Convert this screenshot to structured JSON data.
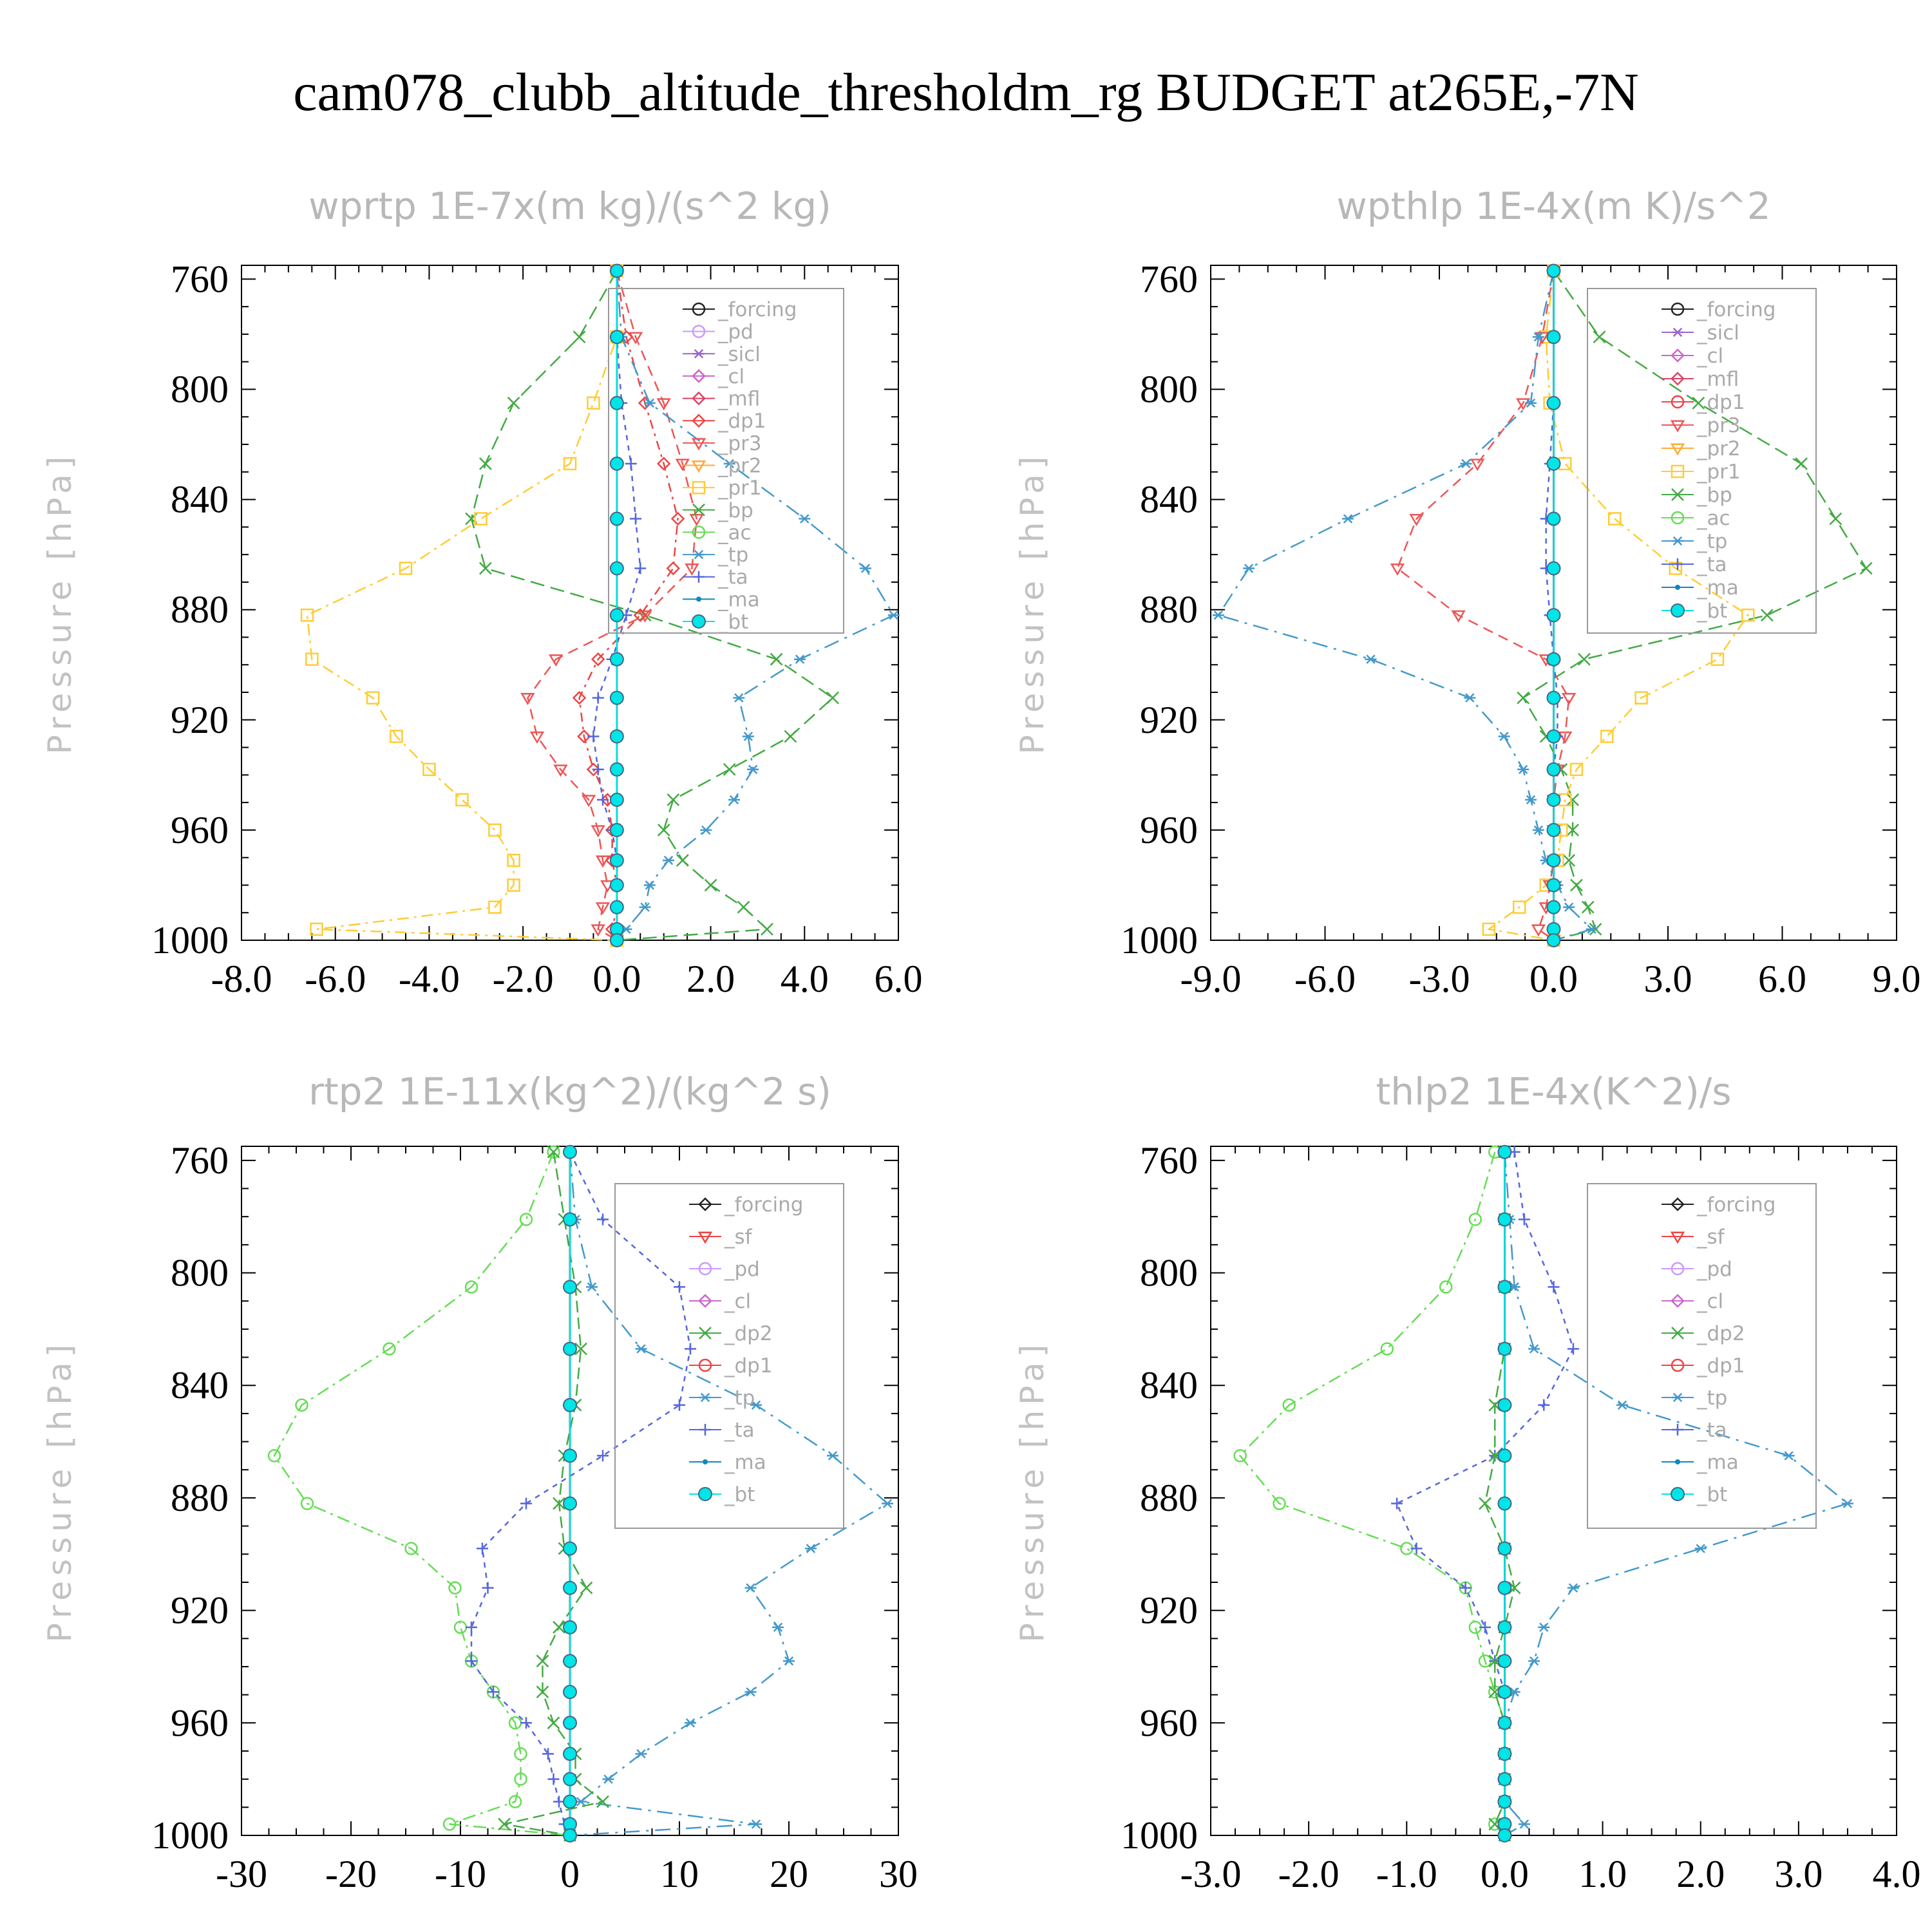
{
  "title": "cam078_clubb_altitude_thresholdm_rg  BUDGET at265E,-7N",
  "colors": {
    "forcing": "#222222",
    "pd": "#cc99ff",
    "sicl": "#9966cc",
    "cl": "#cc66cc",
    "mfl": "#dd4466",
    "dp1": "#ee4444",
    "pr3": "#ee5555",
    "pr2": "#ffaa33",
    "pr1": "#ffcc33",
    "bp": "#44aa44",
    "ac": "#66dd55",
    "tp": "#4499cc",
    "ta": "#5566dd",
    "ma": "#1188bb",
    "bt": "#00e5e5",
    "sf": "#ee4444",
    "dp2": "#44aa44"
  },
  "chart_data": [
    {
      "type": "line",
      "title": "wprtp  1E-7x(m kg)/(s^2 kg)",
      "ylabel": "Pressure [hPa]",
      "xlabel": "",
      "xlim": [
        -8,
        6
      ],
      "ylim": [
        1000,
        755
      ],
      "xticks": [
        "-8.0",
        "-6.0",
        "-4.0",
        "-2.0",
        "0.0",
        "2.0",
        "4.0",
        "6.0"
      ],
      "yticks": [
        "760",
        "800",
        "840",
        "880",
        "920",
        "960",
        "1000"
      ],
      "y": [
        757,
        781,
        805,
        827,
        847,
        865,
        882,
        898,
        912,
        926,
        938,
        949,
        960,
        971,
        980,
        988,
        996,
        1000
      ],
      "legend": [
        "_forcing",
        "_pd",
        "_sicl",
        "_cl",
        "_mfl",
        "_dp1",
        "_pr3",
        "_pr2",
        "_pr1",
        "_bp",
        "_ac",
        "_tp",
        "_ta",
        "_ma",
        "_bt"
      ],
      "series": [
        {
          "name": "_bp",
          "key": "bp",
          "marker": "x",
          "values": [
            0,
            -0.8,
            -2.2,
            -2.8,
            -3.1,
            -2.8,
            0.6,
            3.4,
            4.6,
            3.7,
            2.4,
            1.2,
            1.0,
            1.4,
            2.0,
            2.7,
            3.2,
            0
          ]
        },
        {
          "name": "_pr1",
          "key": "pr1",
          "marker": "square",
          "values": [
            0,
            0,
            -0.5,
            -1.0,
            -2.9,
            -4.5,
            -6.6,
            -6.5,
            -5.2,
            -4.7,
            -4.0,
            -3.3,
            -2.6,
            -2.2,
            -2.2,
            -2.6,
            -6.4,
            0
          ]
        },
        {
          "name": "_pr3",
          "key": "pr3",
          "marker": "tri-down",
          "values": [
            0,
            0.4,
            1.0,
            1.4,
            1.7,
            1.6,
            0.6,
            -1.3,
            -1.9,
            -1.7,
            -1.2,
            -0.6,
            -0.4,
            -0.3,
            -0.2,
            -0.3,
            -0.4,
            0
          ]
        },
        {
          "name": "_dp1",
          "key": "dp1",
          "marker": "diamond",
          "values": [
            0,
            0.2,
            0.6,
            1.0,
            1.3,
            1.2,
            0.5,
            -0.4,
            -0.8,
            -0.7,
            -0.5,
            -0.2,
            -0.1,
            -0.1,
            0,
            0,
            -0.1,
            0
          ]
        },
        {
          "name": "_tp",
          "key": "tp",
          "marker": "asterisk",
          "values": [
            0,
            0.1,
            0.7,
            2.4,
            4.0,
            5.3,
            5.9,
            3.9,
            2.6,
            2.8,
            2.9,
            2.5,
            1.9,
            1.1,
            0.7,
            0.6,
            0.2,
            0
          ]
        },
        {
          "name": "_ta",
          "key": "ta",
          "marker": "plus",
          "values": [
            0,
            0,
            0.1,
            0.3,
            0.4,
            0.5,
            0.2,
            -0.1,
            -0.4,
            -0.5,
            -0.4,
            -0.3,
            -0.1,
            0,
            0,
            0,
            0,
            0
          ]
        },
        {
          "name": "_ma",
          "key": "ma",
          "marker": "dot",
          "values": [
            0,
            0,
            0,
            0,
            0,
            0,
            0,
            0,
            0,
            0,
            0,
            0,
            0,
            0,
            0,
            0,
            0,
            0
          ]
        },
        {
          "name": "_forcing",
          "key": "forcing",
          "marker": "circle",
          "values": [
            0,
            0,
            0,
            0,
            0,
            0,
            0,
            0,
            0,
            0,
            0,
            0,
            0,
            0,
            0,
            0,
            0,
            0
          ]
        },
        {
          "name": "_bt",
          "key": "bt",
          "marker": "filled",
          "values": [
            0,
            0,
            0,
            0,
            0,
            0,
            0,
            0,
            0,
            0,
            0,
            0,
            0,
            0,
            0,
            0,
            0,
            0
          ]
        }
      ]
    },
    {
      "type": "line",
      "title": "wpthlp  1E-4x(m K)/s^2",
      "ylabel": "Pressure [hPa]",
      "xlabel": "",
      "xlim": [
        -9,
        9
      ],
      "ylim": [
        1000,
        755
      ],
      "xticks": [
        "-9.0",
        "-6.0",
        "-3.0",
        "0.0",
        "3.0",
        "6.0",
        "9.0"
      ],
      "yticks": [
        "760",
        "800",
        "840",
        "880",
        "920",
        "960",
        "1000"
      ],
      "y": [
        757,
        781,
        805,
        827,
        847,
        865,
        882,
        898,
        912,
        926,
        938,
        949,
        960,
        971,
        980,
        988,
        996,
        1000
      ],
      "legend": [
        "_forcing",
        "_sicl",
        "_cl",
        "_mfl",
        "_dp1",
        "_pr3",
        "_pr2",
        "_pr1",
        "_bp",
        "_ac",
        "_tp",
        "_ta",
        "_ma",
        "_bt"
      ],
      "series": [
        {
          "name": "_bp",
          "key": "bp",
          "marker": "x",
          "values": [
            0,
            1.2,
            3.8,
            6.5,
            7.4,
            8.2,
            5.6,
            0.8,
            -0.8,
            -0.2,
            0.2,
            0.5,
            0.5,
            0.4,
            0.6,
            0.9,
            1.1,
            0
          ]
        },
        {
          "name": "_pr1",
          "key": "pr1",
          "marker": "square",
          "values": [
            0,
            -0.2,
            -0.1,
            0.3,
            1.6,
            3.2,
            5.1,
            4.3,
            2.3,
            1.4,
            0.6,
            0.3,
            0.2,
            0.1,
            -0.2,
            -0.9,
            -1.7,
            0
          ]
        },
        {
          "name": "_pr3",
          "key": "pr3",
          "marker": "tri-down",
          "values": [
            0,
            -0.3,
            -0.8,
            -2.0,
            -3.6,
            -4.1,
            -2.5,
            -0.2,
            0.4,
            0.3,
            0.1,
            0,
            0,
            0,
            -0.1,
            -0.2,
            -0.4,
            0
          ]
        },
        {
          "name": "_tp",
          "key": "tp",
          "marker": "asterisk",
          "values": [
            0,
            -0.4,
            -0.6,
            -2.3,
            -5.4,
            -8.0,
            -8.8,
            -4.8,
            -2.2,
            -1.3,
            -0.8,
            -0.6,
            -0.4,
            -0.2,
            0.1,
            0.4,
            1.0,
            0
          ]
        },
        {
          "name": "_ta",
          "key": "ta",
          "marker": "plus",
          "values": [
            0,
            0,
            0,
            -0.1,
            -0.2,
            -0.2,
            -0.1,
            0,
            0.1,
            0.1,
            0,
            0,
            0,
            0,
            0,
            0,
            0,
            0
          ]
        },
        {
          "name": "_ma",
          "key": "ma",
          "marker": "dot",
          "values": [
            0,
            0,
            0,
            0,
            0,
            0,
            0,
            0,
            0,
            0,
            0,
            0,
            0,
            0,
            0,
            0,
            0,
            0
          ]
        },
        {
          "name": "_forcing",
          "key": "forcing",
          "marker": "circle",
          "values": [
            0,
            0,
            0,
            0,
            0,
            0,
            0,
            0,
            0,
            0,
            0,
            0,
            0,
            0,
            0,
            0,
            0,
            0
          ]
        },
        {
          "name": "_bt",
          "key": "bt",
          "marker": "filled",
          "values": [
            0,
            0,
            0,
            0,
            0,
            0,
            0,
            0,
            0,
            0,
            0,
            0,
            0,
            0,
            0,
            0,
            0,
            0
          ]
        }
      ]
    },
    {
      "type": "line",
      "title": "rtp2  1E-11x(kg^2)/(kg^2 s)",
      "ylabel": "Pressure [hPa]",
      "xlabel": "",
      "xlim": [
        -30,
        30
      ],
      "ylim": [
        1000,
        755
      ],
      "xticks": [
        "-30",
        "-20",
        "-10",
        "0",
        "10",
        "20",
        "30"
      ],
      "yticks": [
        "760",
        "800",
        "840",
        "880",
        "920",
        "960",
        "1000"
      ],
      "y": [
        757,
        781,
        805,
        827,
        847,
        865,
        882,
        898,
        912,
        926,
        938,
        949,
        960,
        971,
        980,
        988,
        996,
        1000
      ],
      "legend": [
        "_forcing",
        "_sf",
        "_pd",
        "_cl",
        "_dp2",
        "_dp1",
        "_tp",
        "_ta",
        "_ma",
        "_bt"
      ],
      "series": [
        {
          "name": "_dp1",
          "key": "ac",
          "marker": "circle",
          "values": [
            -1.5,
            -4,
            -9,
            -16.5,
            -24.5,
            -27,
            -24,
            -14.5,
            -10.5,
            -10,
            -9,
            -7,
            -5,
            -4.5,
            -4.5,
            -5,
            -11,
            0
          ]
        },
        {
          "name": "_ta",
          "key": "ta",
          "marker": "plus",
          "values": [
            0,
            3,
            10,
            11,
            10,
            3,
            -4,
            -8,
            -7.5,
            -9,
            -9,
            -7,
            -4,
            -2,
            -1.5,
            -1,
            -0.5,
            0
          ]
        },
        {
          "name": "_tp",
          "key": "tp",
          "marker": "asterisk",
          "values": [
            0,
            0.5,
            2,
            6.5,
            17,
            24,
            29,
            22,
            16.5,
            19,
            20,
            16.5,
            11,
            6.5,
            3.5,
            1,
            17,
            0
          ]
        },
        {
          "name": "_dp2",
          "key": "dp2",
          "marker": "x",
          "values": [
            -1.5,
            -0.5,
            0.5,
            1,
            0.5,
            -0.5,
            -1,
            -0.5,
            1.5,
            -1,
            -2.5,
            -2.5,
            -1.5,
            0.5,
            0.5,
            3,
            -6,
            0
          ]
        },
        {
          "name": "_ma",
          "key": "ma",
          "marker": "dot",
          "values": [
            0,
            0,
            0,
            0,
            0,
            0,
            0,
            0,
            0,
            0,
            0,
            0,
            0,
            0,
            0,
            0,
            0,
            0
          ]
        },
        {
          "name": "_forcing",
          "key": "forcing",
          "marker": "diamond",
          "values": [
            0,
            0,
            0,
            0,
            0,
            0,
            0,
            0,
            0,
            0,
            0,
            0,
            0,
            0,
            0,
            0,
            0,
            0
          ]
        },
        {
          "name": "_bt",
          "key": "bt",
          "marker": "filled",
          "values": [
            0,
            0,
            0,
            0,
            0,
            0,
            0,
            0,
            0,
            0,
            0,
            0,
            0,
            0,
            0,
            0,
            0,
            0
          ]
        }
      ]
    },
    {
      "type": "line",
      "title": "thlp2  1E-4x(K^2)/s",
      "ylabel": "Pressure [hPa]",
      "xlabel": "",
      "xlim": [
        -3,
        4
      ],
      "ylim": [
        1000,
        755
      ],
      "xticks": [
        "-3.0",
        "-2.0",
        "-1.0",
        "0.0",
        "1.0",
        "2.0",
        "3.0",
        "4.0"
      ],
      "yticks": [
        "760",
        "800",
        "840",
        "880",
        "920",
        "960",
        "1000"
      ],
      "y": [
        757,
        781,
        805,
        827,
        847,
        865,
        882,
        898,
        912,
        926,
        938,
        949,
        960,
        971,
        980,
        988,
        996,
        1000
      ],
      "legend": [
        "_forcing",
        "_sf",
        "_pd",
        "_cl",
        "_dp2",
        "_dp1",
        "_tp",
        "_ta",
        "_ma",
        "_bt"
      ],
      "series": [
        {
          "name": "_dp1",
          "key": "ac",
          "marker": "circle",
          "values": [
            -0.1,
            -0.3,
            -0.6,
            -1.2,
            -2.2,
            -2.7,
            -2.3,
            -1.0,
            -0.4,
            -0.3,
            -0.2,
            -0.1,
            0,
            0,
            0,
            0,
            -0.1,
            0
          ]
        },
        {
          "name": "_ta",
          "key": "ta",
          "marker": "plus",
          "values": [
            0.1,
            0.2,
            0.5,
            0.7,
            0.4,
            -0.1,
            -1.1,
            -0.9,
            -0.4,
            -0.2,
            -0.1,
            0,
            0,
            0,
            0,
            0,
            0,
            0
          ]
        },
        {
          "name": "_tp",
          "key": "tp",
          "marker": "asterisk",
          "values": [
            0,
            0.05,
            0.1,
            0.3,
            1.2,
            2.9,
            3.5,
            2.0,
            0.7,
            0.4,
            0.3,
            0.1,
            0,
            0,
            0,
            0,
            0.2,
            0
          ]
        },
        {
          "name": "_dp2",
          "key": "dp2",
          "marker": "x",
          "values": [
            0,
            0,
            0,
            0,
            -0.1,
            -0.1,
            -0.2,
            0,
            0.1,
            0,
            -0.1,
            -0.1,
            0,
            0,
            0,
            0,
            -0.1,
            0
          ]
        },
        {
          "name": "_ma",
          "key": "ma",
          "marker": "dot",
          "values": [
            0,
            0,
            0,
            0,
            0,
            0,
            0,
            0,
            0,
            0,
            0,
            0,
            0,
            0,
            0,
            0,
            0,
            0
          ]
        },
        {
          "name": "_forcing",
          "key": "forcing",
          "marker": "diamond",
          "values": [
            0,
            0,
            0,
            0,
            0,
            0,
            0,
            0,
            0,
            0,
            0,
            0,
            0,
            0,
            0,
            0,
            0,
            0
          ]
        },
        {
          "name": "_bt",
          "key": "bt",
          "marker": "filled",
          "values": [
            0,
            0,
            0,
            0,
            0,
            0,
            0,
            0,
            0,
            0,
            0,
            0,
            0,
            0,
            0,
            0,
            0,
            0
          ]
        }
      ]
    }
  ]
}
